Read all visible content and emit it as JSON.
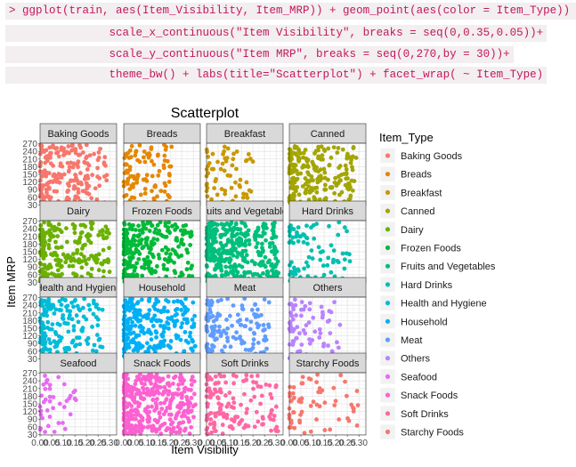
{
  "code": {
    "lines": [
      "> ggplot(train, aes(Item_Visibility, Item_MRP)) + geom_point(aes(color = Item_Type)) +",
      "               scale_x_continuous(\"Item Visibility\", breaks = seq(0,0.35,0.05))+",
      "               scale_y_continuous(\"Item MRP\", breaks = seq(0,270,by = 30))+",
      "               theme_bw() + labs(title=\"Scatterplot\") + facet_wrap( ~ Item_Type)"
    ]
  },
  "chart_data": {
    "type": "scatter",
    "title": "Scatterplot",
    "xlabel": "Item Visibility",
    "ylabel": "Item MRP",
    "xlim": [
      0,
      0.33
    ],
    "ylim": [
      28,
      272
    ],
    "x_ticks": [
      0.0,
      0.05,
      0.1,
      0.15,
      0.2,
      0.25,
      0.3
    ],
    "x_tick_labels": [
      "0.00",
      "0.05",
      "0.10",
      "0.15",
      "0.20",
      "0.25",
      "0.30"
    ],
    "y_ticks": [
      30,
      60,
      90,
      120,
      150,
      180,
      210,
      240,
      270
    ],
    "y_tick_labels": [
      "30",
      "60",
      "90",
      "120",
      "150",
      "180",
      "210",
      "240",
      "270"
    ],
    "grid": true,
    "legend_title": "Item_Type",
    "legend_position": "right",
    "facets": [
      {
        "label": "Baking Goods",
        "color": "#F8766D",
        "max_x": 0.29,
        "density": 0.55
      },
      {
        "label": "Breads",
        "color": "#E58700",
        "max_x": 0.21,
        "density": 0.25
      },
      {
        "label": "Breakfast",
        "color": "#C99800",
        "max_x": 0.21,
        "density": 0.12
      },
      {
        "label": "Canned",
        "color": "#A3A500",
        "max_x": 0.29,
        "density": 0.6
      },
      {
        "label": "Dairy",
        "color": "#6BB100",
        "max_x": 0.3,
        "density": 0.6
      },
      {
        "label": "Frozen Foods",
        "color": "#00BA38",
        "max_x": 0.3,
        "density": 0.7
      },
      {
        "label": "Fruits and Vegetables",
        "color": "#00BF7D",
        "max_x": 0.31,
        "density": 0.95
      },
      {
        "label": "Hard Drinks",
        "color": "#00C0AF",
        "max_x": 0.27,
        "density": 0.18
      },
      {
        "label": "Health and Hygiene",
        "color": "#00BCD8",
        "max_x": 0.27,
        "density": 0.45
      },
      {
        "label": "Household",
        "color": "#00B0F6",
        "max_x": 0.31,
        "density": 0.75
      },
      {
        "label": "Meat",
        "color": "#619CFF",
        "max_x": 0.27,
        "density": 0.35
      },
      {
        "label": "Others",
        "color": "#B983FF",
        "max_x": 0.23,
        "density": 0.15
      },
      {
        "label": "Seafood",
        "color": "#E76BF3",
        "max_x": 0.16,
        "density": 0.05
      },
      {
        "label": "Snack Foods",
        "color": "#FD61D1",
        "max_x": 0.31,
        "density": 1.0
      },
      {
        "label": "Soft Drinks",
        "color": "#FF67A4",
        "max_x": 0.31,
        "density": 0.35
      },
      {
        "label": "Starchy Foods",
        "color": "#F8766D",
        "max_x": 0.3,
        "density": 0.12
      }
    ]
  }
}
